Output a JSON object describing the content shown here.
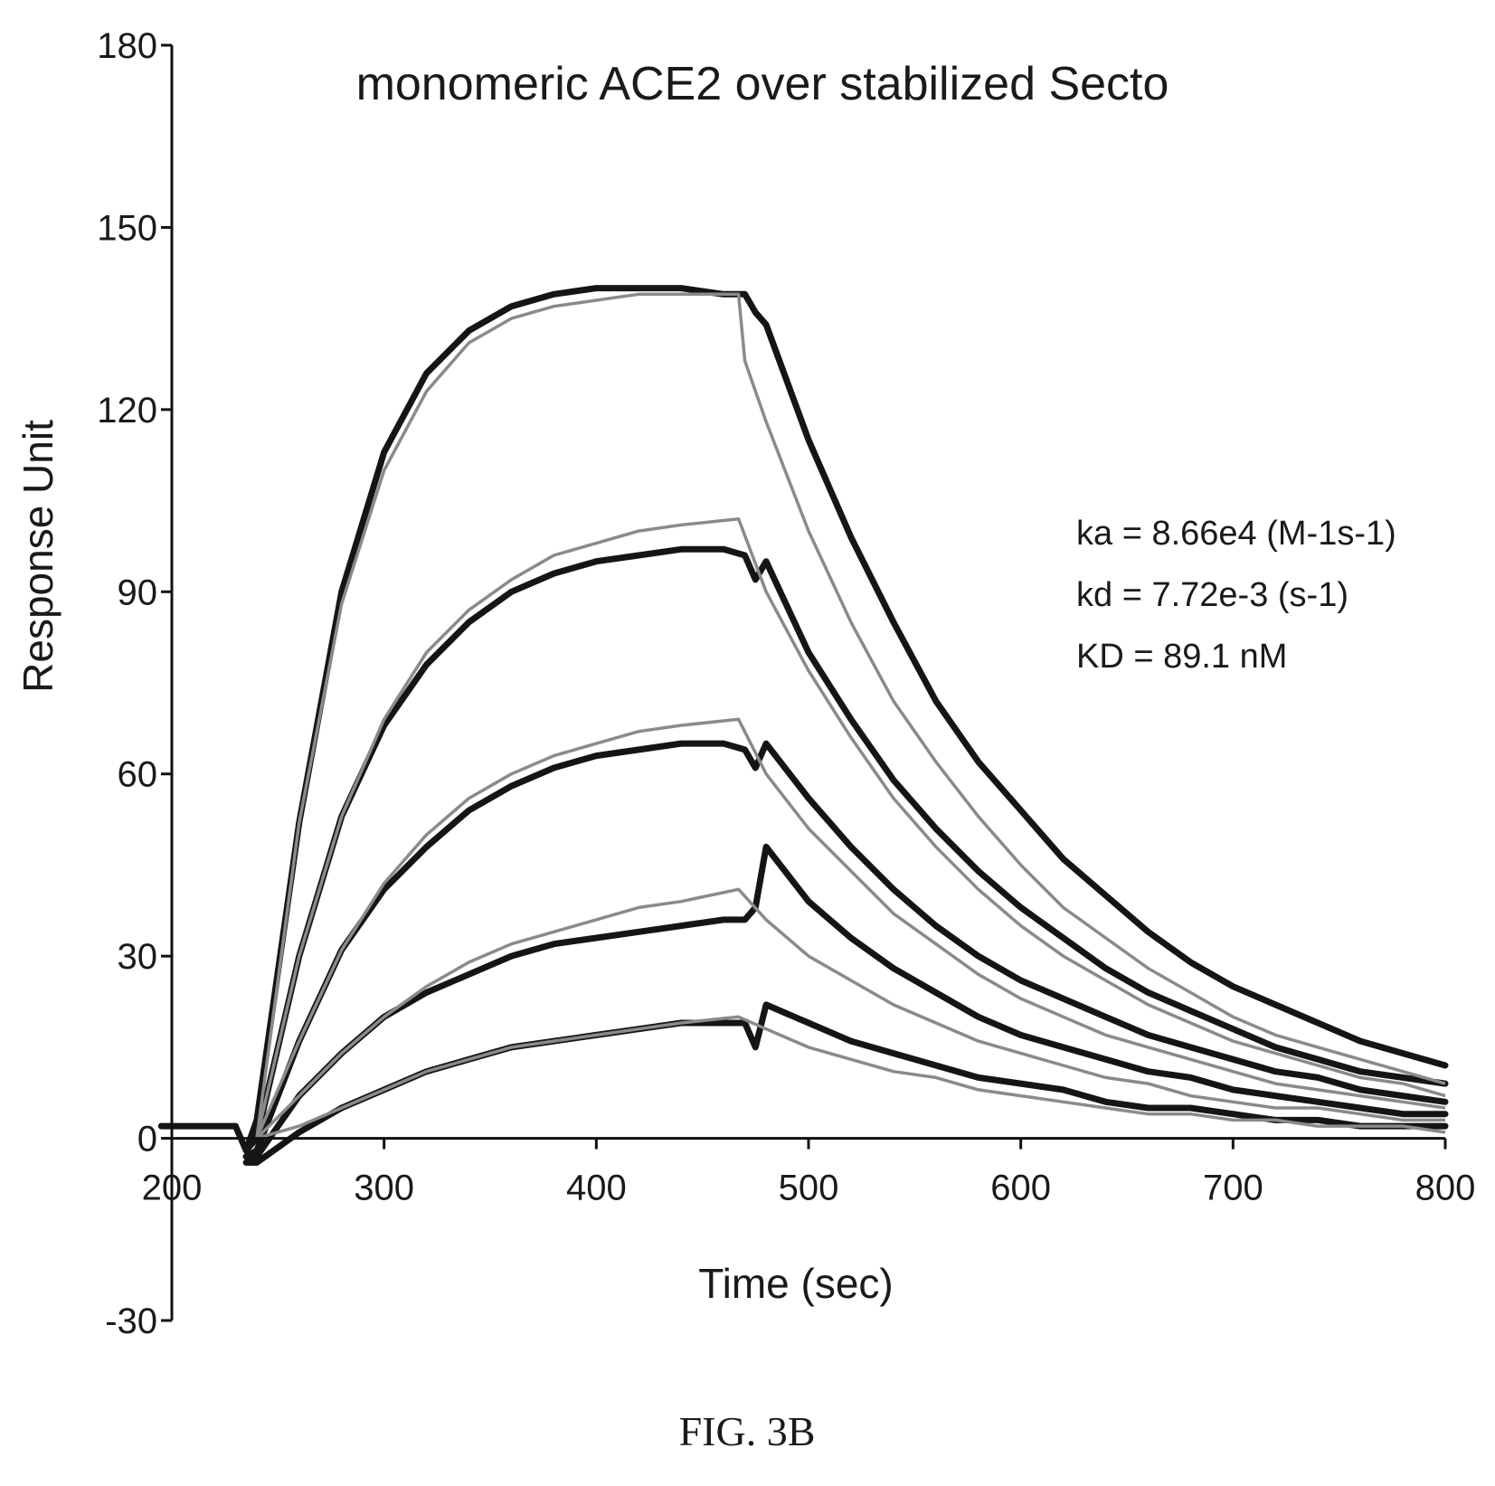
{
  "chart_data": {
    "type": "line",
    "title": "monomeric ACE2 over stabilized Secto",
    "xlabel": "Time (sec)",
    "ylabel": "Response Unit",
    "xlim": [
      200,
      800
    ],
    "ylim": [
      -30,
      180
    ],
    "x_ticks": [
      "200",
      "300",
      "400",
      "500",
      "600",
      "700",
      "800"
    ],
    "y_ticks": [
      "180",
      "150",
      "120",
      "90",
      "60",
      "30",
      "0",
      "-30"
    ],
    "x_tick_values": [
      200,
      300,
      400,
      500,
      600,
      700,
      800
    ],
    "y_tick_values": [
      180,
      150,
      120,
      90,
      60,
      30,
      0,
      -30
    ],
    "grid": false,
    "annotations": [
      "ka = 8.66e4 (M-1s-1)",
      "kd = 7.72e-3 (s-1)",
      "KD = 89.1 nM"
    ],
    "series": [
      {
        "x": [
          195,
          230,
          235,
          240,
          260,
          280,
          300,
          320,
          340,
          360,
          380,
          400,
          420,
          440,
          460,
          470,
          475,
          480,
          500,
          520,
          540,
          560,
          580,
          600,
          620,
          640,
          660,
          680,
          700,
          720,
          740,
          760,
          780,
          800
        ],
        "values": [
          2,
          2,
          -2,
          3,
          52,
          90,
          113,
          126,
          133,
          137,
          139,
          140,
          140,
          140,
          139,
          139,
          136,
          134,
          115,
          99,
          85,
          72,
          62,
          54,
          46,
          40,
          34,
          29,
          25,
          22,
          19,
          16,
          14,
          12
        ]
      },
      {
        "x": [
          235,
          240,
          260,
          280,
          300,
          320,
          340,
          360,
          380,
          400,
          420,
          440,
          460,
          470,
          475,
          480,
          500,
          520,
          540,
          560,
          580,
          600,
          620,
          640,
          660,
          680,
          700,
          720,
          740,
          760,
          780,
          800
        ],
        "values": [
          -2,
          0,
          30,
          53,
          68,
          78,
          85,
          90,
          93,
          95,
          96,
          97,
          97,
          96,
          92,
          95,
          80,
          69,
          59,
          51,
          44,
          38,
          33,
          28,
          24,
          21,
          18,
          15,
          13,
          11,
          10,
          9
        ]
      },
      {
        "x": [
          235,
          240,
          260,
          280,
          300,
          320,
          340,
          360,
          380,
          400,
          420,
          440,
          460,
          470,
          475,
          480,
          500,
          520,
          540,
          560,
          580,
          600,
          620,
          640,
          660,
          680,
          700,
          720,
          740,
          760,
          780,
          800
        ],
        "values": [
          -3,
          -2,
          16,
          31,
          41,
          48,
          54,
          58,
          61,
          63,
          64,
          65,
          65,
          64,
          61,
          65,
          56,
          48,
          41,
          35,
          30,
          26,
          23,
          20,
          17,
          15,
          13,
          11,
          10,
          8,
          7,
          6
        ]
      },
      {
        "x": [
          235,
          240,
          260,
          280,
          300,
          320,
          340,
          360,
          380,
          400,
          420,
          440,
          460,
          470,
          475,
          480,
          500,
          520,
          540,
          560,
          580,
          600,
          620,
          640,
          660,
          680,
          700,
          720,
          740,
          760,
          780,
          800
        ],
        "values": [
          -3,
          -3,
          7,
          14,
          20,
          24,
          27,
          30,
          32,
          33,
          34,
          35,
          36,
          36,
          38,
          48,
          39,
          33,
          28,
          24,
          20,
          17,
          15,
          13,
          11,
          10,
          8,
          7,
          6,
          5,
          4,
          4
        ]
      },
      {
        "x": [
          235,
          240,
          260,
          280,
          300,
          320,
          340,
          360,
          380,
          400,
          420,
          440,
          460,
          470,
          475,
          480,
          500,
          520,
          540,
          560,
          580,
          600,
          620,
          640,
          660,
          680,
          700,
          720,
          740,
          760,
          780,
          800
        ],
        "values": [
          -4,
          -4,
          1,
          5,
          8,
          11,
          13,
          15,
          16,
          17,
          18,
          19,
          19,
          19,
          15,
          22,
          19,
          16,
          14,
          12,
          10,
          9,
          8,
          6,
          5,
          5,
          4,
          3,
          3,
          2,
          2,
          2
        ]
      }
    ],
    "fits": [
      {
        "x": [
          240,
          260,
          280,
          300,
          320,
          340,
          360,
          380,
          400,
          420,
          440,
          467,
          470,
          480,
          500,
          520,
          540,
          560,
          580,
          600,
          620,
          640,
          660,
          680,
          700,
          720,
          740,
          760,
          780,
          800
        ],
        "values": [
          0,
          52,
          88,
          110,
          123,
          131,
          135,
          137,
          138,
          139,
          139,
          139,
          128,
          118,
          100,
          85,
          72,
          62,
          53,
          45,
          38,
          33,
          28,
          24,
          20,
          17,
          15,
          13,
          11,
          9
        ]
      },
      {
        "x": [
          240,
          260,
          280,
          300,
          320,
          340,
          360,
          380,
          400,
          420,
          440,
          467,
          480,
          500,
          520,
          540,
          560,
          580,
          600,
          620,
          640,
          660,
          680,
          700,
          720,
          740,
          760,
          780,
          800
        ],
        "values": [
          0,
          30,
          53,
          69,
          80,
          87,
          92,
          96,
          98,
          100,
          101,
          102,
          90,
          77,
          66,
          56,
          48,
          41,
          35,
          30,
          26,
          22,
          19,
          16,
          14,
          12,
          10,
          9,
          7
        ]
      },
      {
        "x": [
          240,
          260,
          280,
          300,
          320,
          340,
          360,
          380,
          400,
          420,
          440,
          467,
          480,
          500,
          520,
          540,
          560,
          580,
          600,
          620,
          640,
          660,
          680,
          700,
          720,
          740,
          760,
          780,
          800
        ],
        "values": [
          0,
          16,
          31,
          42,
          50,
          56,
          60,
          63,
          65,
          67,
          68,
          69,
          60,
          51,
          44,
          37,
          32,
          27,
          23,
          20,
          17,
          15,
          13,
          11,
          9,
          8,
          7,
          6,
          5
        ]
      },
      {
        "x": [
          240,
          260,
          280,
          300,
          320,
          340,
          360,
          380,
          400,
          420,
          440,
          467,
          480,
          500,
          520,
          540,
          560,
          580,
          600,
          620,
          640,
          660,
          680,
          700,
          720,
          740,
          760,
          780,
          800
        ],
        "values": [
          0,
          7,
          14,
          20,
          25,
          29,
          32,
          34,
          36,
          38,
          39,
          41,
          36,
          30,
          26,
          22,
          19,
          16,
          14,
          12,
          10,
          9,
          7,
          6,
          5,
          5,
          4,
          3,
          3
        ]
      },
      {
        "x": [
          240,
          260,
          280,
          300,
          320,
          340,
          360,
          380,
          400,
          420,
          440,
          467,
          480,
          500,
          520,
          540,
          560,
          580,
          600,
          620,
          640,
          660,
          680,
          700,
          720,
          740,
          760,
          780,
          800
        ],
        "values": [
          0,
          2,
          5,
          8,
          11,
          13,
          15,
          16,
          17,
          18,
          19,
          20,
          18,
          15,
          13,
          11,
          10,
          8,
          7,
          6,
          5,
          4,
          4,
          3,
          3,
          2,
          2,
          2,
          1
        ]
      }
    ]
  },
  "caption": "FIG. 3B"
}
